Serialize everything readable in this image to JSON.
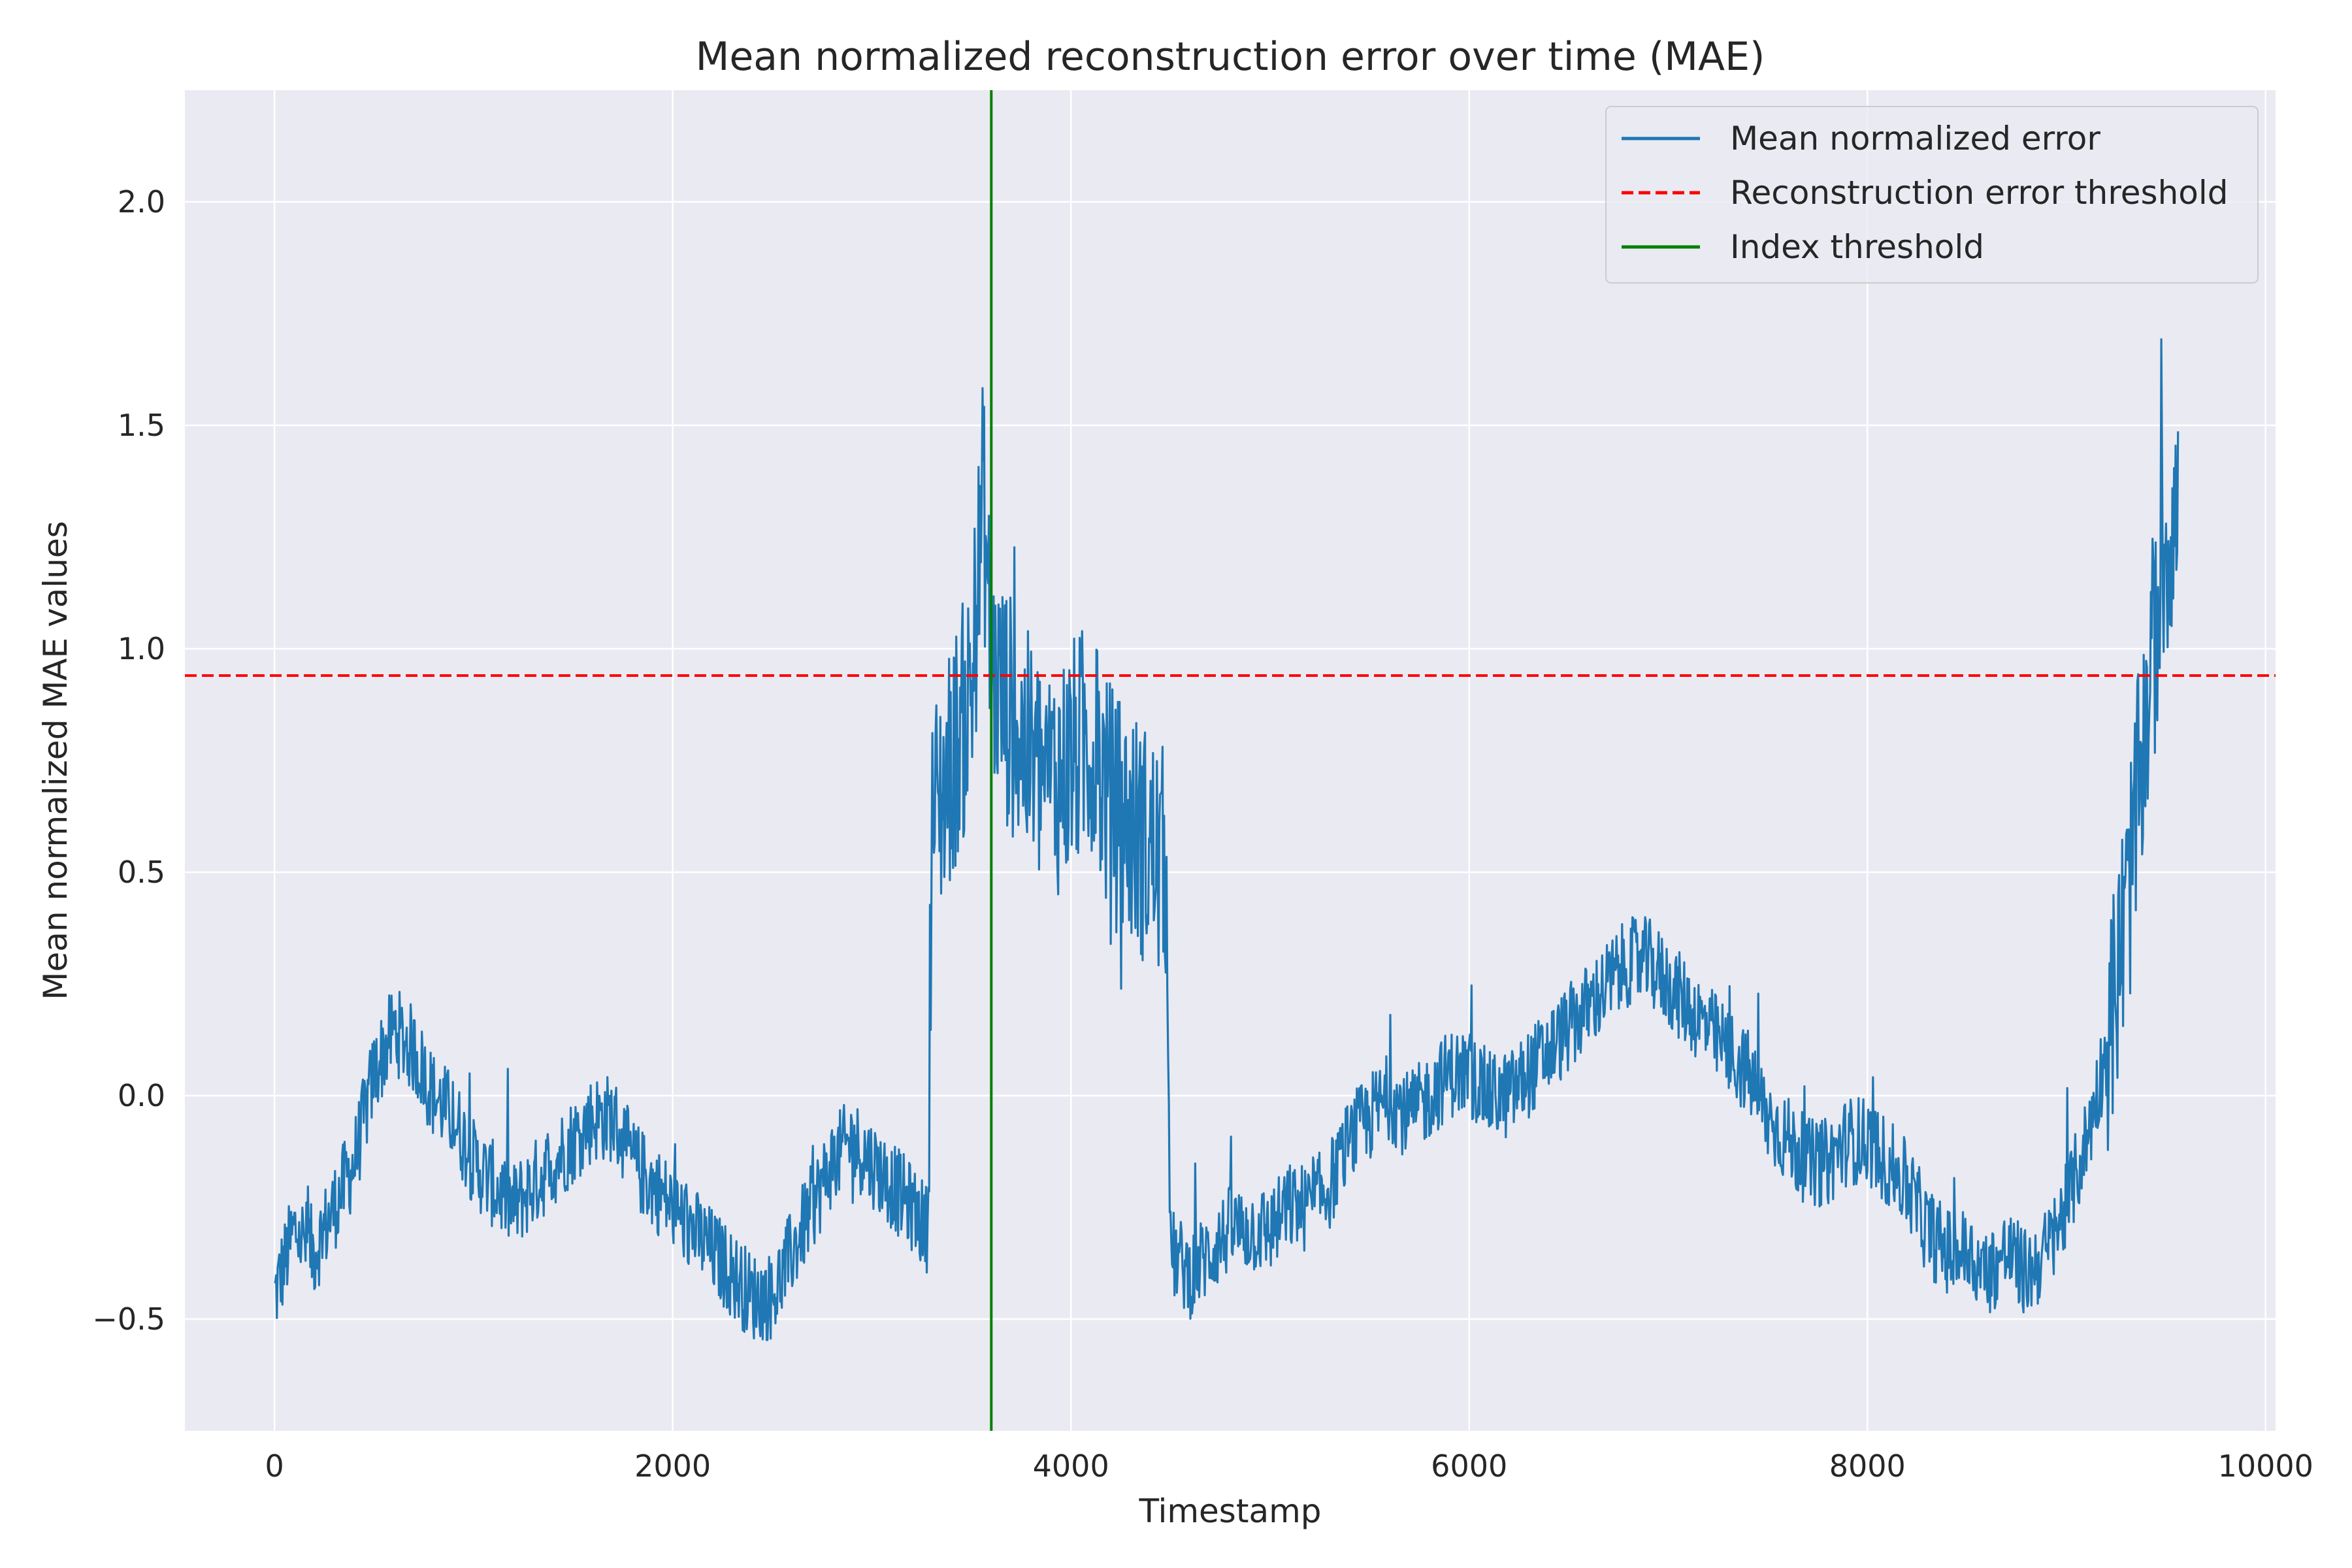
{
  "chart_data": {
    "type": "line",
    "title": "Mean normalized reconstruction error over time (MAE)",
    "xlabel": "Timestamp",
    "ylabel": "Mean normalized MAE values",
    "xlim": [
      -450,
      10050
    ],
    "ylim": [
      -0.75,
      2.25
    ],
    "x_ticks": [
      0,
      2000,
      4000,
      6000,
      8000,
      10000
    ],
    "x_tick_labels": [
      "0",
      "2000",
      "4000",
      "6000",
      "8000",
      "10000"
    ],
    "y_ticks": [
      -0.5,
      0.0,
      0.5,
      1.0,
      1.5,
      2.0
    ],
    "y_tick_labels": [
      "−0.5",
      "0.0",
      "0.5",
      "1.0",
      "1.5",
      "2.0"
    ],
    "grid": true,
    "legend_position": "top-right",
    "series": [
      {
        "name": "Mean normalized error",
        "color": "#1f77b4",
        "style": "solid",
        "x": [
          0,
          100,
          200,
          300,
          400,
          500,
          600,
          700,
          800,
          900,
          1000,
          1100,
          1200,
          1300,
          1400,
          1500,
          1600,
          1700,
          1800,
          1900,
          2000,
          2100,
          2200,
          2300,
          2400,
          2500,
          2600,
          2700,
          2800,
          2900,
          3000,
          3100,
          3200,
          3280,
          3300,
          3400,
          3500,
          3560,
          3600,
          3700,
          3800,
          3900,
          4000,
          4100,
          4200,
          4300,
          4400,
          4480,
          4500,
          4600,
          4700,
          4800,
          4900,
          5000,
          5100,
          5200,
          5300,
          5400,
          5500,
          5600,
          5700,
          5800,
          5900,
          6000,
          6100,
          6200,
          6300,
          6400,
          6500,
          6600,
          6700,
          6800,
          6900,
          7000,
          7100,
          7200,
          7300,
          7400,
          7500,
          7600,
          7700,
          7800,
          7900,
          8000,
          8100,
          8200,
          8300,
          8400,
          8500,
          8600,
          8700,
          8800,
          8900,
          9000,
          9100,
          9200,
          9300,
          9400,
          9500,
          9560
        ],
        "values": [
          -0.45,
          -0.3,
          -0.35,
          -0.25,
          -0.15,
          0.05,
          0.15,
          0.1,
          0.0,
          -0.05,
          -0.15,
          -0.2,
          -0.25,
          -0.2,
          -0.15,
          -0.1,
          -0.05,
          -0.05,
          -0.15,
          -0.2,
          -0.25,
          -0.3,
          -0.35,
          -0.4,
          -0.45,
          -0.45,
          -0.35,
          -0.25,
          -0.15,
          -0.1,
          -0.15,
          -0.2,
          -0.25,
          -0.3,
          0.6,
          0.75,
          0.9,
          1.35,
          0.95,
          0.85,
          0.75,
          0.7,
          0.75,
          0.8,
          0.65,
          0.6,
          0.55,
          0.5,
          -0.35,
          -0.4,
          -0.35,
          -0.3,
          -0.3,
          -0.3,
          -0.25,
          -0.25,
          -0.2,
          -0.1,
          -0.05,
          0.0,
          -0.05,
          0.0,
          0.05,
          0.05,
          0.0,
          0.0,
          0.05,
          0.1,
          0.15,
          0.2,
          0.25,
          0.3,
          0.3,
          0.25,
          0.2,
          0.15,
          0.1,
          0.05,
          -0.05,
          -0.1,
          -0.15,
          -0.15,
          -0.1,
          -0.1,
          -0.15,
          -0.2,
          -0.3,
          -0.35,
          -0.35,
          -0.4,
          -0.35,
          -0.4,
          -0.35,
          -0.25,
          -0.1,
          0.1,
          0.4,
          0.85,
          1.25,
          1.3
        ]
      },
      {
        "name": "Reconstruction error threshold",
        "color": "#ff0000",
        "style": "dashed",
        "y": 0.94
      },
      {
        "name": "Index threshold",
        "color": "#008000",
        "style": "solid",
        "x": 3600
      }
    ]
  }
}
